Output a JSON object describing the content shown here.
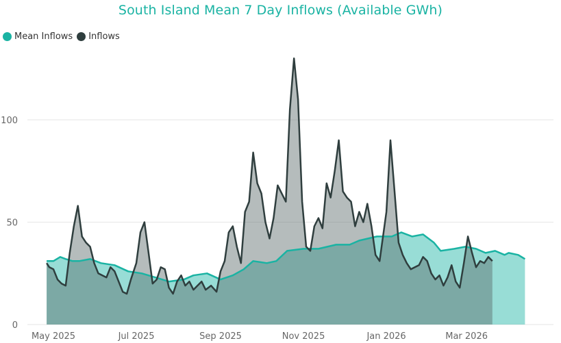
{
  "chart_data": {
    "type": "area",
    "title": "South Island Mean 7 Day Inflows (Available GWh)",
    "xlabel": "",
    "ylabel": "",
    "ylim": [
      0,
      130
    ],
    "yticks": [
      0,
      50,
      100
    ],
    "xticks": [
      {
        "label": "May 2025",
        "date": "2025-05-01"
      },
      {
        "label": "Jul 2025",
        "date": "2025-07-01"
      },
      {
        "label": "Sep 2025",
        "date": "2025-09-01"
      },
      {
        "label": "Nov 2025",
        "date": "2025-11-01"
      },
      {
        "label": "Jan 2026",
        "date": "2026-01-01"
      },
      {
        "label": "Mar 2026",
        "date": "2026-03-01"
      }
    ],
    "grid": true,
    "legend_position": "top-left",
    "series": [
      {
        "name": "Mean Inflows",
        "color": "#1ab3a3",
        "points": [
          [
            "2025-04-26",
            31
          ],
          [
            "2025-05-01",
            31
          ],
          [
            "2025-05-06",
            33
          ],
          [
            "2025-05-10",
            32
          ],
          [
            "2025-05-15",
            31
          ],
          [
            "2025-05-20",
            31
          ],
          [
            "2025-05-28",
            32
          ],
          [
            "2025-06-05",
            30
          ],
          [
            "2025-06-15",
            29
          ],
          [
            "2025-06-25",
            26
          ],
          [
            "2025-07-05",
            25
          ],
          [
            "2025-07-15",
            23
          ],
          [
            "2025-07-25",
            21
          ],
          [
            "2025-08-05",
            22
          ],
          [
            "2025-08-12",
            24
          ],
          [
            "2025-08-22",
            25
          ],
          [
            "2025-09-01",
            22
          ],
          [
            "2025-09-10",
            24
          ],
          [
            "2025-09-18",
            27
          ],
          [
            "2025-09-25",
            31
          ],
          [
            "2025-10-05",
            30
          ],
          [
            "2025-10-12",
            31
          ],
          [
            "2025-10-20",
            36
          ],
          [
            "2025-11-01",
            37
          ],
          [
            "2025-11-12",
            37
          ],
          [
            "2025-11-25",
            39
          ],
          [
            "2025-12-05",
            39
          ],
          [
            "2025-12-12",
            41
          ],
          [
            "2025-12-25",
            43
          ],
          [
            "2026-01-05",
            43
          ],
          [
            "2026-01-12",
            45
          ],
          [
            "2026-01-20",
            43
          ],
          [
            "2026-01-28",
            44
          ],
          [
            "2026-02-05",
            40
          ],
          [
            "2026-02-10",
            36
          ],
          [
            "2026-02-20",
            37
          ],
          [
            "2026-02-28",
            38
          ],
          [
            "2026-03-08",
            37
          ],
          [
            "2026-03-15",
            35
          ],
          [
            "2026-03-22",
            36
          ],
          [
            "2026-03-29",
            34
          ],
          [
            "2026-04-01",
            35
          ],
          [
            "2026-04-08",
            34
          ],
          [
            "2026-04-13",
            32
          ]
        ]
      },
      {
        "name": "Inflows",
        "color": "#2f3e3e",
        "points": [
          [
            "2025-04-26",
            30
          ],
          [
            "2025-04-28",
            28
          ],
          [
            "2025-05-01",
            27
          ],
          [
            "2025-05-04",
            22
          ],
          [
            "2025-05-07",
            20
          ],
          [
            "2025-05-10",
            19
          ],
          [
            "2025-05-13",
            35
          ],
          [
            "2025-05-16",
            48
          ],
          [
            "2025-05-19",
            58
          ],
          [
            "2025-05-22",
            43
          ],
          [
            "2025-05-25",
            40
          ],
          [
            "2025-05-28",
            38
          ],
          [
            "2025-05-31",
            30
          ],
          [
            "2025-06-03",
            25
          ],
          [
            "2025-06-06",
            24
          ],
          [
            "2025-06-09",
            23
          ],
          [
            "2025-06-12",
            28
          ],
          [
            "2025-06-15",
            26
          ],
          [
            "2025-06-18",
            21
          ],
          [
            "2025-06-21",
            16
          ],
          [
            "2025-06-24",
            15
          ],
          [
            "2025-06-27",
            22
          ],
          [
            "2025-07-01",
            30
          ],
          [
            "2025-07-04",
            45
          ],
          [
            "2025-07-07",
            50
          ],
          [
            "2025-07-10",
            35
          ],
          [
            "2025-07-13",
            20
          ],
          [
            "2025-07-16",
            22
          ],
          [
            "2025-07-19",
            28
          ],
          [
            "2025-07-22",
            27
          ],
          [
            "2025-07-25",
            18
          ],
          [
            "2025-07-28",
            15
          ],
          [
            "2025-07-31",
            21
          ],
          [
            "2025-08-03",
            24
          ],
          [
            "2025-08-06",
            19
          ],
          [
            "2025-08-09",
            21
          ],
          [
            "2025-08-12",
            17
          ],
          [
            "2025-08-15",
            19
          ],
          [
            "2025-08-18",
            21
          ],
          [
            "2025-08-21",
            17
          ],
          [
            "2025-08-25",
            19
          ],
          [
            "2025-08-29",
            16
          ],
          [
            "2025-09-01",
            26
          ],
          [
            "2025-09-04",
            31
          ],
          [
            "2025-09-07",
            45
          ],
          [
            "2025-09-10",
            48
          ],
          [
            "2025-09-13",
            38
          ],
          [
            "2025-09-16",
            30
          ],
          [
            "2025-09-19",
            55
          ],
          [
            "2025-09-22",
            60
          ],
          [
            "2025-09-25",
            84
          ],
          [
            "2025-09-28",
            69
          ],
          [
            "2025-10-01",
            64
          ],
          [
            "2025-10-04",
            50
          ],
          [
            "2025-10-07",
            42
          ],
          [
            "2025-10-10",
            52
          ],
          [
            "2025-10-13",
            68
          ],
          [
            "2025-10-16",
            64
          ],
          [
            "2025-10-19",
            60
          ],
          [
            "2025-10-22",
            105
          ],
          [
            "2025-10-25",
            130
          ],
          [
            "2025-10-28",
            110
          ],
          [
            "2025-10-31",
            60
          ],
          [
            "2025-11-03",
            38
          ],
          [
            "2025-11-06",
            36
          ],
          [
            "2025-11-09",
            48
          ],
          [
            "2025-11-12",
            52
          ],
          [
            "2025-11-15",
            47
          ],
          [
            "2025-11-18",
            69
          ],
          [
            "2025-11-21",
            62
          ],
          [
            "2025-11-24",
            75
          ],
          [
            "2025-11-27",
            90
          ],
          [
            "2025-11-30",
            65
          ],
          [
            "2025-12-03",
            62
          ],
          [
            "2025-12-06",
            60
          ],
          [
            "2025-12-09",
            48
          ],
          [
            "2025-12-12",
            55
          ],
          [
            "2025-12-15",
            50
          ],
          [
            "2025-12-18",
            59
          ],
          [
            "2025-12-21",
            48
          ],
          [
            "2025-12-24",
            34
          ],
          [
            "2025-12-27",
            31
          ],
          [
            "2026-01-01",
            55
          ],
          [
            "2026-01-04",
            90
          ],
          [
            "2026-01-07",
            65
          ],
          [
            "2026-01-10",
            40
          ],
          [
            "2026-01-13",
            34
          ],
          [
            "2026-01-16",
            30
          ],
          [
            "2026-01-19",
            27
          ],
          [
            "2026-01-22",
            28
          ],
          [
            "2026-01-25",
            29
          ],
          [
            "2026-01-28",
            33
          ],
          [
            "2026-01-31",
            31
          ],
          [
            "2026-02-03",
            25
          ],
          [
            "2026-02-06",
            22
          ],
          [
            "2026-02-09",
            24
          ],
          [
            "2026-02-12",
            19
          ],
          [
            "2026-02-15",
            23
          ],
          [
            "2026-02-18",
            29
          ],
          [
            "2026-02-21",
            21
          ],
          [
            "2026-02-24",
            18
          ],
          [
            "2026-02-27",
            30
          ],
          [
            "2026-03-02",
            43
          ],
          [
            "2026-03-05",
            35
          ],
          [
            "2026-03-08",
            28
          ],
          [
            "2026-03-11",
            31
          ],
          [
            "2026-03-14",
            30
          ],
          [
            "2026-03-17",
            33
          ],
          [
            "2026-03-20",
            31
          ]
        ]
      }
    ]
  }
}
